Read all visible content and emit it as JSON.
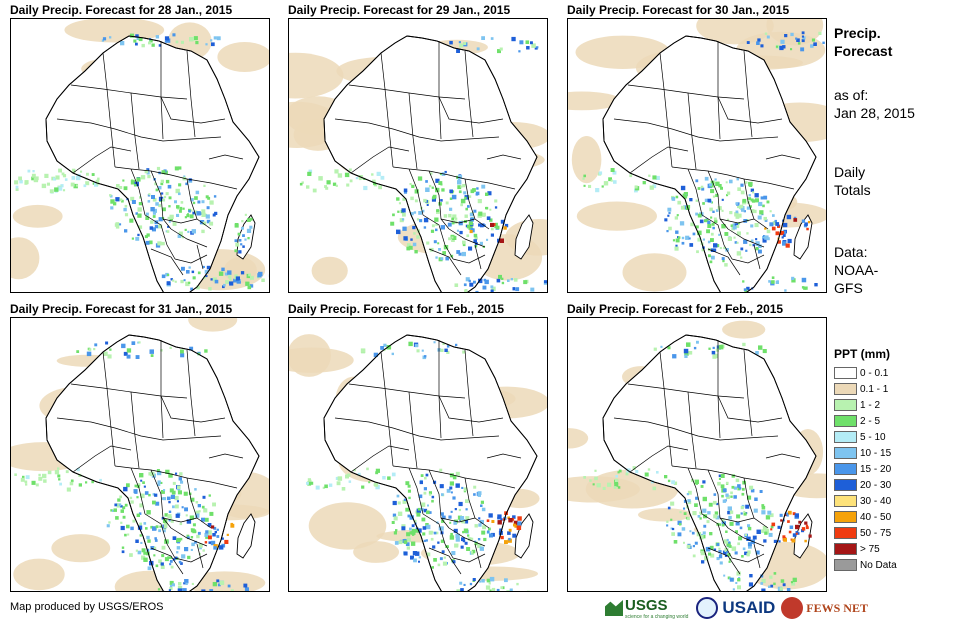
{
  "panels": [
    {
      "title": "Daily Precip. Forecast for 28 Jan., 2015"
    },
    {
      "title": "Daily Precip. Forecast for 29 Jan., 2015"
    },
    {
      "title": "Daily Precip. Forecast for 30 Jan., 2015"
    },
    {
      "title": "Daily Precip. Forecast for 31 Jan., 2015"
    },
    {
      "title": "Daily Precip. Forecast for 1 Feb., 2015"
    },
    {
      "title": "Daily Precip. Forecast for 2 Feb., 2015"
    }
  ],
  "sidebar": {
    "heading_line1": "Precip.",
    "heading_line2": "Forecast",
    "asof_label": "as of:",
    "asof_date": "Jan 28, 2015",
    "daily_line1": "Daily",
    "daily_line2": "Totals",
    "data_line1": "Data:",
    "data_line2": "NOAA-",
    "data_line3": "GFS"
  },
  "legend": {
    "title": "PPT (mm)",
    "items": [
      {
        "label": "0 - 0.1",
        "color": "#ffffff"
      },
      {
        "label": "0.1 - 1",
        "color": "#ecd9b8"
      },
      {
        "label": "1 - 2",
        "color": "#b8f2b0"
      },
      {
        "label": "2 - 5",
        "color": "#6fe06a"
      },
      {
        "label": "5 - 10",
        "color": "#b4ecf6"
      },
      {
        "label": "10 - 15",
        "color": "#7ec4f0"
      },
      {
        "label": "15 - 20",
        "color": "#4a96ea"
      },
      {
        "label": "20 - 30",
        "color": "#1e5fd8"
      },
      {
        "label": "30 - 40",
        "color": "#fde27a"
      },
      {
        "label": "40 - 50",
        "color": "#f5a20a"
      },
      {
        "label": "50 - 75",
        "color": "#f03b10"
      },
      {
        "label": "> 75",
        "color": "#a51616"
      },
      {
        "label": "No Data",
        "color": "#9a9a9a"
      }
    ]
  },
  "credit": "Map produced by USGS/EROS",
  "logos": {
    "usgs": "USGS",
    "usgs_tagline": "science for a changing world",
    "usaid": "USAID",
    "fews": "FEWS NET"
  }
}
